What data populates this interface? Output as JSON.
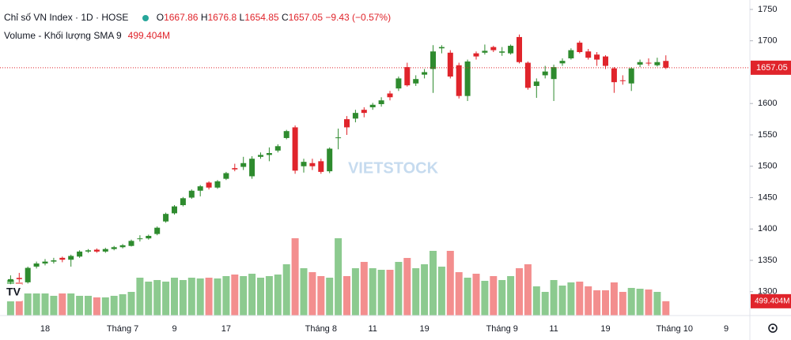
{
  "chart_data": {
    "type": "candlestick",
    "title": "Chỉ số VN Index · 1D · HOSE",
    "ohlc_labels": [
      "O",
      "H",
      "L",
      "C"
    ],
    "change": "−9.43 (−0.57%)",
    "watermark": "VIETSTOCK",
    "categories": [
      null,
      null,
      null,
      null,
      "18",
      null,
      null,
      null,
      null,
      null,
      null,
      null,
      null,
      "Tháng 7",
      null,
      null,
      null,
      null,
      null,
      "9",
      null,
      null,
      null,
      null,
      null,
      "17",
      null,
      null,
      null,
      null,
      null,
      null,
      null,
      null,
      null,
      null,
      "Tháng 8",
      null,
      null,
      null,
      null,
      null,
      "11",
      null,
      null,
      null,
      null,
      null,
      "19",
      null,
      null,
      null,
      null,
      null,
      null,
      null,
      null,
      "Tháng 9",
      null,
      null,
      null,
      null,
      null,
      "11",
      null,
      null,
      null,
      null,
      null,
      "19",
      null,
      null,
      null,
      null,
      null,
      null,
      null,
      "Tháng 10",
      null,
      null,
      null,
      null,
      null,
      "9"
    ],
    "open": [
      1316,
      1322,
      1315,
      1340,
      1345,
      1348,
      1354,
      1351,
      1356,
      1364,
      1367,
      1364,
      1368,
      1371,
      1373,
      1384,
      1385,
      1392,
      1412,
      1425,
      1438,
      1450,
      1461,
      1474,
      1466,
      1480,
      1497,
      1499,
      1484,
      1515,
      1518,
      1525,
      1545,
      1562,
      1500,
      1505,
      1508,
      1492,
      1545,
      1575,
      1576,
      1590,
      1594,
      1599,
      1616,
      1624,
      1658,
      1632,
      1646,
      1655,
      1688,
      1681,
      1661,
      1612,
      1680,
      1681,
      1690,
      1681,
      1680,
      1706,
      1665,
      1628,
      1645,
      1639,
      1664,
      1672,
      1697,
      1683,
      1678,
      1675,
      1656,
      1637,
      1632,
      1662,
      1665,
      1661,
      1667.86,
      null,
      null,
      null,
      null,
      null,
      null,
      null
    ],
    "high": [
      1326,
      1330,
      1340,
      1348,
      1352,
      1354,
      1356,
      1359,
      1366,
      1368,
      1369,
      1370,
      1373,
      1376,
      1383,
      1390,
      1391,
      1404,
      1426,
      1438,
      1451,
      1463,
      1470,
      1476,
      1478,
      1491,
      1504,
      1515,
      1516,
      1522,
      1530,
      1535,
      1558,
      1565,
      1512,
      1512,
      1512,
      1530,
      1560,
      1580,
      1590,
      1594,
      1601,
      1610,
      1620,
      1643,
      1665,
      1645,
      1655,
      1693,
      1693,
      1685,
      1665,
      1670,
      1683,
      1694,
      1692,
      1690,
      1694,
      1710,
      1667,
      1640,
      1660,
      1662,
      1672,
      1688,
      1700,
      1687,
      1682,
      1677,
      1658,
      1645,
      1658,
      1670,
      1672,
      1673,
      1676.8,
      null,
      null,
      null,
      null,
      null,
      null,
      null
    ],
    "low": [
      1312,
      1315,
      1313,
      1337,
      1342,
      1345,
      1347,
      1340,
      1354,
      1362,
      1362,
      1362,
      1366,
      1369,
      1372,
      1380,
      1383,
      1390,
      1410,
      1423,
      1436,
      1448,
      1452,
      1463,
      1464,
      1478,
      1492,
      1494,
      1480,
      1512,
      1508,
      1522,
      1543,
      1488,
      1490,
      1494,
      1488,
      1489,
      1527,
      1550,
      1570,
      1578,
      1590,
      1595,
      1605,
      1620,
      1627,
      1628,
      1640,
      1617,
      1680,
      1640,
      1608,
      1604,
      1670,
      1678,
      1682,
      1676,
      1678,
      1664,
      1622,
      1609,
      1640,
      1604,
      1660,
      1670,
      1680,
      1670,
      1660,
      1655,
      1617,
      1630,
      1620,
      1658,
      1660,
      1659,
      1654.85,
      null,
      null,
      null,
      null,
      null,
      null,
      null
    ],
    "close": [
      1320,
      1320,
      1338,
      1345,
      1348,
      1350,
      1351,
      1357,
      1364,
      1366,
      1364,
      1368,
      1371,
      1374,
      1381,
      1385,
      1389,
      1402,
      1424,
      1436,
      1449,
      1461,
      1468,
      1466,
      1476,
      1489,
      1495,
      1505,
      1512,
      1518,
      1521,
      1532,
      1556,
      1493,
      1507,
      1500,
      1491,
      1528,
      1546,
      1562,
      1585,
      1585,
      1598,
      1605,
      1610,
      1640,
      1629,
      1639,
      1650,
      1683,
      1690,
      1643,
      1612,
      1667,
      1675,
      1684,
      1685,
      1683,
      1692,
      1666,
      1625,
      1635,
      1651,
      1658,
      1668,
      1685,
      1682,
      1673,
      1670,
      1660,
      1634,
      1636,
      1656,
      1666,
      1664,
      1666,
      1657.05,
      null,
      null,
      null,
      null,
      null,
      null,
      null
    ],
    "volume": {
      "name": "Volume - Khối lượng",
      "indicator": "SMA 9",
      "last_label": "499.404M",
      "values": [
        1238,
        1155,
        770,
        770,
        770,
        688,
        770,
        770,
        688,
        688,
        633,
        633,
        688,
        743,
        825,
        1320,
        1183,
        1238,
        1183,
        1320,
        1238,
        1320,
        1293,
        1320,
        1293,
        1375,
        1430,
        1375,
        1458,
        1320,
        1375,
        1430,
        1788,
        2695,
        1650,
        1513,
        1375,
        1320,
        2695,
        1375,
        1650,
        1870,
        1650,
        1595,
        1595,
        1870,
        2008,
        1650,
        1788,
        2255,
        1705,
        2255,
        1513,
        1320,
        1458,
        1210,
        1375,
        1238,
        1375,
        1650,
        1788,
        1018,
        825,
        1238,
        1045,
        1155,
        1183,
        1018,
        880,
        880,
        1155,
        825,
        963,
        935,
        908,
        825,
        499.404,
        null,
        null,
        null,
        null,
        null,
        null,
        null
      ],
      "vlim": [
        0,
        11000
      ],
      "up_color": "#8cca8f",
      "down_color": "#f38e8e"
    },
    "up_color": "#2e8b2e",
    "down_color": "#e0242b",
    "ylim": [
      1262,
      1765
    ],
    "yticks": [
      1300,
      1350,
      1400,
      1450,
      1500,
      1550,
      1600,
      1700,
      1750
    ],
    "grid": false
  }
}
